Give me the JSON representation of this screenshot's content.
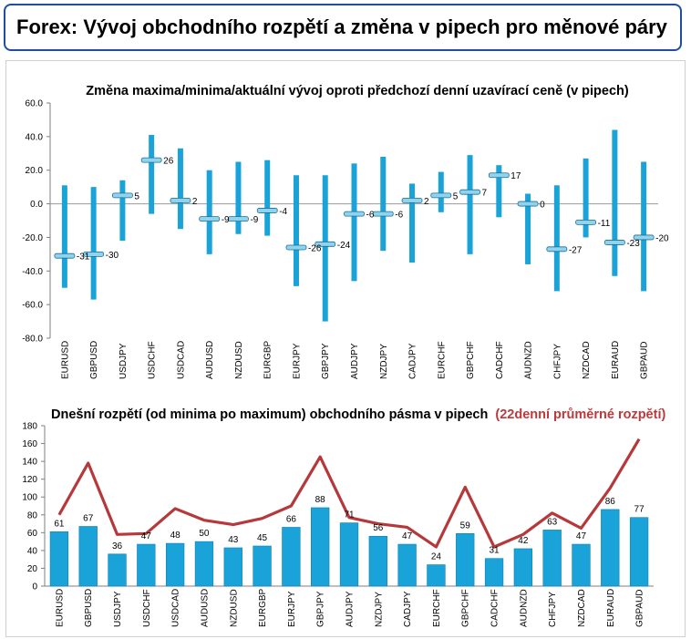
{
  "header": {
    "title": "Forex: Vývoj obchodního rozpětí a změna v pipech pro měnové páry"
  },
  "colors": {
    "bar": "#1aa3d9",
    "bar_dark": "#0f7fb3",
    "line": "#b7383a",
    "header_border": "#1f4f9c",
    "accent_title": "#c0383a"
  },
  "chart_data": [
    {
      "type": "range-bar",
      "title": "Změna maxima/minima/aktuální vývoj oproti předchozí denní uzavírací ceně (v pipech)",
      "ylim": [
        -80,
        60
      ],
      "yticks": [
        "60.0",
        "40.0",
        "20.0",
        "0.0",
        "-20.0",
        "-40.0",
        "-60.0",
        "-80.0"
      ],
      "categories": [
        "EURUSD",
        "GBPUSD",
        "USDJPY",
        "USDCHF",
        "USDCAD",
        "AUDUSD",
        "NZDUSD",
        "EURGBP",
        "EURJPY",
        "GBPJPY",
        "AUDJPY",
        "NZDJPY",
        "CADJPY",
        "EURCHF",
        "GBPCHF",
        "CADCHF",
        "AUDNZD",
        "CHFJPY",
        "NZDCAD",
        "EURAUD",
        "GBPAUD"
      ],
      "high": [
        11,
        10,
        14,
        41,
        33,
        20,
        25,
        26,
        17,
        17,
        24,
        28,
        12,
        19,
        29,
        23,
        6,
        11,
        27,
        44,
        25
      ],
      "low": [
        -50,
        -57,
        -22,
        -6,
        -15,
        -30,
        -18,
        -19,
        -49,
        -70,
        -46,
        -28,
        -35,
        -5,
        -30,
        -8,
        -36,
        -52,
        -20,
        -43,
        -52
      ],
      "current": [
        -31,
        -30,
        5,
        26,
        2,
        -9,
        -9,
        -4,
        -26,
        -24,
        -6,
        -6,
        2,
        5,
        7,
        17,
        0,
        -27,
        -11,
        -23,
        -20
      ]
    },
    {
      "type": "bar",
      "title": "Dnešní rozpětí (od minima po maximum) obchodního pásma v pipech",
      "title_accent": "(22denní průměrné rozpětí)",
      "ylim": [
        0,
        180
      ],
      "yticks": [
        "180",
        "160",
        "140",
        "120",
        "100",
        "80",
        "60",
        "40",
        "20",
        "0"
      ],
      "categories": [
        "EURUSD",
        "GBPUSD",
        "USDJPY",
        "USDCHF",
        "USDCAD",
        "AUDUSD",
        "NZDUSD",
        "EURGBP",
        "EURJPY",
        "GBPJPY",
        "AUDJPY",
        "NZDJPY",
        "CADJPY",
        "EURCHF",
        "GBPCHF",
        "CADCHF",
        "AUDNZD",
        "CHFJPY",
        "NZDCAD",
        "EURAUD",
        "GBPAUD"
      ],
      "values": [
        61,
        67,
        36,
        47,
        48,
        50,
        43,
        45,
        66,
        88,
        71,
        56,
        47,
        24,
        59,
        31,
        42,
        63,
        47,
        86,
        77
      ],
      "average": [
        80,
        138,
        58,
        59,
        87,
        74,
        69,
        76,
        90,
        145,
        77,
        70,
        66,
        44,
        111,
        44,
        58,
        82,
        65,
        110,
        165
      ]
    }
  ]
}
